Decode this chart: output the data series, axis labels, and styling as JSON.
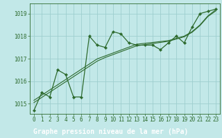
{
  "title": "Graphe pression niveau de la mer (hPa)",
  "background_color": "#c2e8e8",
  "plot_bg_color": "#c2e8e8",
  "grid_color": "#9ecece",
  "line_color": "#2d6a2d",
  "footer_bg": "#2d6a2d",
  "footer_text_color": "#ffffff",
  "x_values": [
    0,
    1,
    2,
    3,
    4,
    5,
    6,
    7,
    8,
    9,
    10,
    11,
    12,
    13,
    14,
    15,
    16,
    17,
    18,
    19,
    20,
    21,
    22,
    23
  ],
  "series1": [
    1014.7,
    1015.5,
    1015.3,
    1016.5,
    1016.3,
    1015.3,
    1015.3,
    1018.0,
    1017.6,
    1017.5,
    1018.2,
    1018.1,
    1017.7,
    1017.6,
    1017.6,
    1017.6,
    1017.4,
    1017.7,
    1018.0,
    1017.7,
    1018.4,
    1019.0,
    1019.1,
    1019.2
  ],
  "trend1": [
    1015.05,
    1015.28,
    1015.51,
    1015.74,
    1015.97,
    1016.2,
    1016.43,
    1016.66,
    1016.89,
    1017.05,
    1017.18,
    1017.31,
    1017.44,
    1017.57,
    1017.62,
    1017.67,
    1017.72,
    1017.77,
    1017.87,
    1017.97,
    1018.17,
    1018.47,
    1018.87,
    1019.12
  ],
  "trend2": [
    1015.15,
    1015.38,
    1015.61,
    1015.84,
    1016.07,
    1016.3,
    1016.53,
    1016.76,
    1016.99,
    1017.12,
    1017.25,
    1017.38,
    1017.51,
    1017.64,
    1017.68,
    1017.72,
    1017.76,
    1017.8,
    1017.9,
    1018.0,
    1018.2,
    1018.5,
    1018.9,
    1019.17
  ],
  "ylim": [
    1014.55,
    1019.45
  ],
  "yticks": [
    1015,
    1016,
    1017,
    1018,
    1019
  ],
  "xtick_labels": [
    "0",
    "1",
    "2",
    "3",
    "4",
    "5",
    "6",
    "7",
    "8",
    "9",
    "10",
    "11",
    "12",
    "13",
    "14",
    "15",
    "16",
    "17",
    "18",
    "19",
    "20",
    "21",
    "22",
    "23"
  ],
  "title_fontsize": 7.0,
  "tick_fontsize": 5.5,
  "marker": "D",
  "marker_size": 2.2
}
